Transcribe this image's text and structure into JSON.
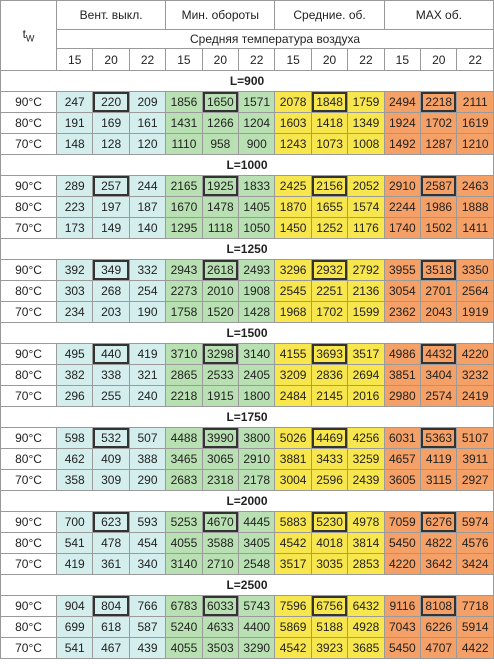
{
  "header": {
    "tw": {
      "symbol": "t",
      "subscript": "W"
    },
    "groups": [
      "Вент. выкл.",
      "Мин. обороты",
      "Средние. об.",
      "MAX об."
    ],
    "subtitle": "Средняя температура воздуха",
    "temperatures": [
      15,
      20,
      22,
      15,
      20,
      22,
      15,
      20,
      22,
      15,
      20,
      22
    ]
  },
  "sections": [
    {
      "title": "L=900",
      "rows": [
        {
          "label": "90°C",
          "values": [
            247,
            220,
            209,
            1856,
            1650,
            1571,
            2078,
            1848,
            1759,
            2494,
            2218,
            2111
          ]
        },
        {
          "label": "80°C",
          "values": [
            191,
            169,
            161,
            1431,
            1266,
            1204,
            1603,
            1418,
            1349,
            1924,
            1702,
            1619
          ]
        },
        {
          "label": "70°C",
          "values": [
            148,
            128,
            120,
            1110,
            958,
            900,
            1243,
            1073,
            1008,
            1492,
            1287,
            1210
          ]
        }
      ]
    },
    {
      "title": "L=1000",
      "rows": [
        {
          "label": "90°C",
          "values": [
            289,
            257,
            244,
            2165,
            1925,
            1833,
            2425,
            2156,
            2052,
            2910,
            2587,
            2463
          ]
        },
        {
          "label": "80°C",
          "values": [
            223,
            197,
            187,
            1670,
            1478,
            1405,
            1870,
            1655,
            1574,
            2244,
            1986,
            1888
          ]
        },
        {
          "label": "70°C",
          "values": [
            173,
            149,
            140,
            1295,
            1118,
            1050,
            1450,
            1252,
            1176,
            1740,
            1502,
            1411
          ]
        }
      ]
    },
    {
      "title": "L=1250",
      "rows": [
        {
          "label": "90°C",
          "values": [
            392,
            349,
            332,
            2943,
            2618,
            2493,
            3296,
            2932,
            2792,
            3955,
            3518,
            3350
          ]
        },
        {
          "label": "80°C",
          "values": [
            303,
            268,
            254,
            2273,
            2010,
            1908,
            2545,
            2251,
            2136,
            3054,
            2701,
            2564
          ]
        },
        {
          "label": "70°C",
          "values": [
            234,
            203,
            190,
            1758,
            1520,
            1428,
            1968,
            1702,
            1599,
            2362,
            2043,
            1919
          ]
        }
      ]
    },
    {
      "title": "L=1500",
      "rows": [
        {
          "label": "90°C",
          "values": [
            495,
            440,
            419,
            3710,
            3298,
            3140,
            4155,
            3693,
            3517,
            4986,
            4432,
            4220
          ]
        },
        {
          "label": "80°C",
          "values": [
            382,
            338,
            321,
            2865,
            2533,
            2405,
            3209,
            2836,
            2694,
            3851,
            3404,
            3232
          ]
        },
        {
          "label": "70°C",
          "values": [
            296,
            255,
            240,
            2218,
            1915,
            1800,
            2484,
            2145,
            2016,
            2980,
            2574,
            2419
          ]
        }
      ]
    },
    {
      "title": "L=1750",
      "rows": [
        {
          "label": "90°C",
          "values": [
            598,
            532,
            507,
            4488,
            3990,
            3800,
            5026,
            4469,
            4256,
            6031,
            5363,
            5107
          ]
        },
        {
          "label": "80°C",
          "values": [
            462,
            409,
            388,
            3465,
            3065,
            2910,
            3881,
            3433,
            3259,
            4657,
            4119,
            3911
          ]
        },
        {
          "label": "70°C",
          "values": [
            358,
            309,
            290,
            2683,
            2318,
            2178,
            3004,
            2596,
            2439,
            3605,
            3115,
            2927
          ]
        }
      ]
    },
    {
      "title": "L=2000",
      "rows": [
        {
          "label": "90°C",
          "values": [
            700,
            623,
            593,
            5253,
            4670,
            4445,
            5883,
            5230,
            4978,
            7059,
            6276,
            5974
          ]
        },
        {
          "label": "80°C",
          "values": [
            541,
            478,
            454,
            4055,
            3588,
            3405,
            4542,
            4018,
            3814,
            5450,
            4822,
            4576
          ]
        },
        {
          "label": "70°C",
          "values": [
            419,
            361,
            340,
            3140,
            2710,
            2548,
            3517,
            3035,
            2853,
            4220,
            3642,
            3424
          ]
        }
      ]
    },
    {
      "title": "L=2500",
      "rows": [
        {
          "label": "90°C",
          "values": [
            904,
            804,
            766,
            6783,
            6033,
            5743,
            7596,
            6756,
            6432,
            9116,
            8108,
            7718
          ]
        },
        {
          "label": "80°C",
          "values": [
            699,
            618,
            587,
            5240,
            4633,
            4400,
            5869,
            5188,
            4928,
            7043,
            6226,
            5914
          ]
        },
        {
          "label": "70°C",
          "values": [
            541,
            467,
            439,
            4055,
            3503,
            3290,
            4542,
            3923,
            3685,
            5450,
            4707,
            4422
          ]
        }
      ]
    }
  ]
}
